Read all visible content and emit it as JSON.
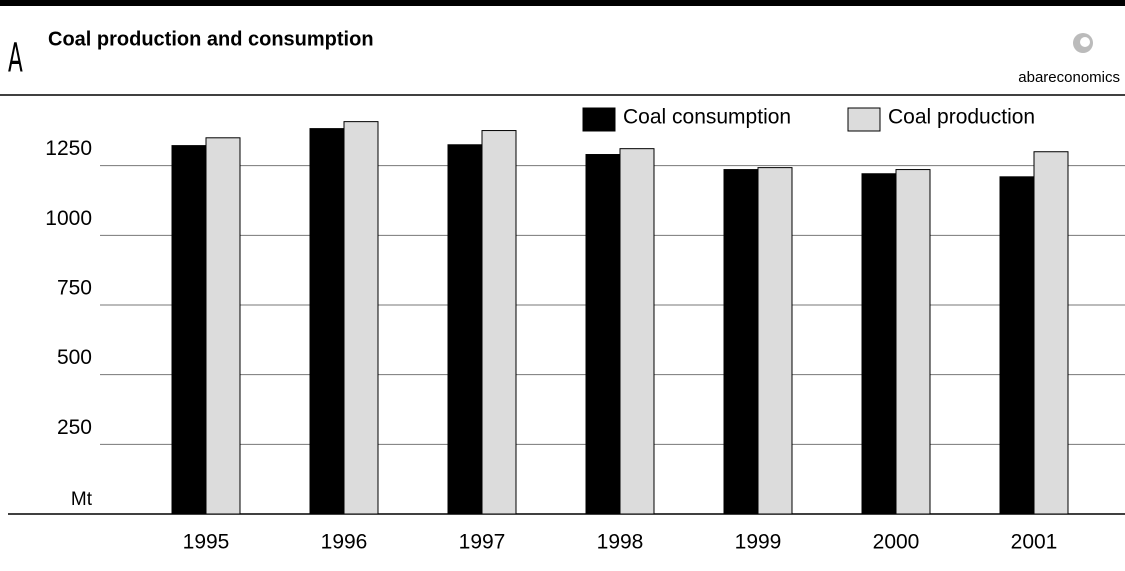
{
  "chart_data": {
    "type": "bar",
    "panel": "A",
    "title": "Coal production and consumption",
    "source": "abareconomics",
    "y_label": "Mt",
    "categories": [
      "1995",
      "1996",
      "1997",
      "1998",
      "1999",
      "2000",
      "2001"
    ],
    "series": [
      {
        "name": "Coal consumption",
        "color": "#000000",
        "values": [
          1322,
          1383,
          1325,
          1290,
          1236,
          1221,
          1210
        ]
      },
      {
        "name": "Coal production",
        "color": "#dcdcdc",
        "values": [
          1350,
          1408,
          1376,
          1311,
          1243,
          1236,
          1300
        ]
      }
    ],
    "ylim": [
      0,
      1500
    ],
    "yticks": [
      250,
      500,
      750,
      1000,
      1250
    ],
    "grid": true
  }
}
